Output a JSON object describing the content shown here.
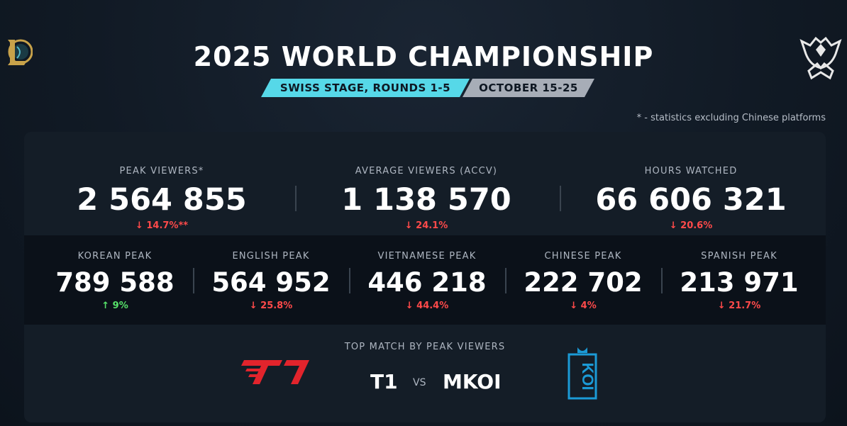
{
  "header": {
    "title": "2025 WORLD CHAMPIONSHIP",
    "stage": "SWISS STAGE, ROUNDS 1-5",
    "dates": "OCTOBER 15-25",
    "footnote": "* - statistics excluding Chinese platforms"
  },
  "colors": {
    "accent": "#56d8e8",
    "down": "#ff4a4a",
    "up": "#57e36a",
    "t1_red": "#e2242c",
    "koi_blue": "#1b9ad6"
  },
  "main_stats": [
    {
      "label": "PEAK VIEWERS*",
      "value": "2 564 855",
      "delta": "↓ 14.7%**",
      "trend": "down"
    },
    {
      "label": "AVERAGE VIEWERS (ACCV)",
      "value": "1 138 570",
      "delta": "↓ 24.1%",
      "trend": "down"
    },
    {
      "label": "HOURS WATCHED",
      "value": "66 606 321",
      "delta": "↓ 20.6%",
      "trend": "down"
    }
  ],
  "language_stats": [
    {
      "label": "KOREAN PEAK",
      "value": "789 588",
      "delta": "↑ 9%",
      "trend": "up"
    },
    {
      "label": "ENGLISH PEAK",
      "value": "564 952",
      "delta": "↓ 25.8%",
      "trend": "down"
    },
    {
      "label": "VIETNAMESE PEAK",
      "value": "446 218",
      "delta": "↓ 44.4%",
      "trend": "down"
    },
    {
      "label": "CHINESE PEAK",
      "value": "222 702",
      "delta": "↓ 4%",
      "trend": "down"
    },
    {
      "label": "SPANISH PEAK",
      "value": "213 971",
      "delta": "↓ 21.7%",
      "trend": "down"
    }
  ],
  "top_match": {
    "label": "TOP MATCH BY PEAK VIEWERS",
    "team1": "T1",
    "vs": "VS",
    "team2": "MKOI",
    "team2_logo_text": "KOI"
  },
  "icons": {
    "left_logo": "league-of-legends-logo-icon",
    "right_logo": "worlds-trophy-logo-icon",
    "team1_logo": "t1-logo-icon",
    "team2_logo": "koi-logo-icon"
  }
}
